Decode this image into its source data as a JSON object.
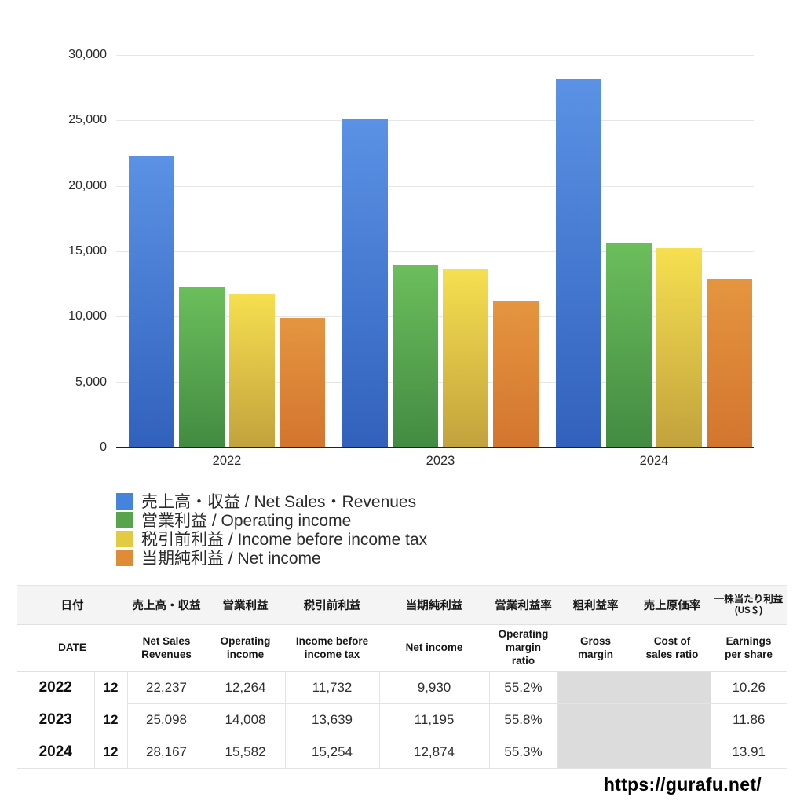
{
  "chart_data": {
    "type": "bar",
    "title": "",
    "xlabel": "",
    "ylabel": "",
    "categories": [
      "2022",
      "2023",
      "2024"
    ],
    "series": [
      {
        "key": "net-sales-revenues",
        "name": "売上高・収益 / Net Sales・Revenues",
        "values": [
          22237,
          25098,
          28167
        ],
        "color_top": "#5b92e5",
        "color_bottom": "#3161bc",
        "legend_color": "#4583dd"
      },
      {
        "key": "operating-income",
        "name": "営業利益 / Operating income",
        "values": [
          12264,
          14008,
          15582
        ],
        "color_top": "#6cbe5c",
        "color_bottom": "#428b42",
        "legend_color": "#57a44c"
      },
      {
        "key": "income-before-income-tax",
        "name": "税引前利益 / Income before income tax",
        "values": [
          11732,
          13639,
          15254
        ],
        "color_top": "#f6df50",
        "color_bottom": "#c2a23d",
        "legend_color": "#e2ca42"
      },
      {
        "key": "net-income",
        "name": "当期純利益 / Net income",
        "values": [
          9930,
          11195,
          12874
        ],
        "color_top": "#e5953f",
        "color_bottom": "#d3752f",
        "legend_color": "#e08b38"
      }
    ],
    "ylim": [
      0,
      30000
    ],
    "ytick_step": 5000,
    "ytick_labels": [
      "0",
      "5,000",
      "10,000",
      "15,000",
      "20,000",
      "25,000",
      "30,000"
    ],
    "grid": true,
    "legend_position": "bottom-left"
  },
  "table": {
    "header_jp": [
      "日付",
      "売上高・収益",
      "営業利益",
      "税引前利益",
      "当期純利益",
      "営業利益率",
      "粗利益率",
      "売上原価率",
      "一株当たり利益"
    ],
    "header_jp_note": "(US＄)",
    "header_en": [
      "DATE",
      "Net Sales\nRevenues",
      "Operating\nincome",
      "Income before\nincome tax",
      "Net income",
      "Operating\nmargin\nratio",
      "Gross\nmargin",
      "Cost of\nsales ratio",
      "Earnings\nper share"
    ],
    "rows": [
      {
        "year": "2022",
        "month": "12",
        "cells": [
          "22,237",
          "12,264",
          "11,732",
          "9,930",
          "55.2%",
          "",
          "",
          "10.26"
        ]
      },
      {
        "year": "2023",
        "month": "12",
        "cells": [
          "25,098",
          "14,008",
          "13,639",
          "11,195",
          "55.8%",
          "",
          "",
          "11.86"
        ]
      },
      {
        "year": "2024",
        "month": "12",
        "cells": [
          "28,167",
          "15,582",
          "15,254",
          "12,874",
          "55.3%",
          "",
          "",
          "13.91"
        ]
      }
    ],
    "disabled_cell_indices": [
      5,
      6
    ]
  },
  "footer": {
    "url": "https://gurafu.net/"
  }
}
